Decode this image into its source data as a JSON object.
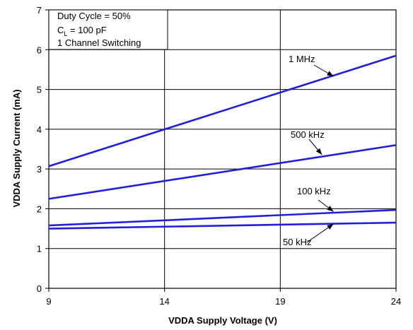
{
  "chart_data": {
    "type": "line",
    "xlabel": "VDDA Supply Voltage (V)",
    "ylabel": "VDDA Supply Current (mA)",
    "xlim": [
      9,
      24
    ],
    "ylim": [
      0,
      7
    ],
    "x_ticks": [
      9,
      14,
      19,
      24
    ],
    "y_ticks": [
      0,
      1,
      2,
      3,
      4,
      5,
      6,
      7
    ],
    "grid": true,
    "series": [
      {
        "name": "1 MHz",
        "x": [
          9,
          24
        ],
        "values": [
          3.07,
          5.85
        ]
      },
      {
        "name": "500 kHz",
        "x": [
          9,
          24
        ],
        "values": [
          2.25,
          3.6
        ]
      },
      {
        "name": "100 kHz",
        "x": [
          9,
          24
        ],
        "values": [
          1.58,
          1.97
        ]
      },
      {
        "name": "50 kHz",
        "x": [
          9,
          24
        ],
        "values": [
          1.5,
          1.65
        ]
      }
    ],
    "conditions": {
      "line1": "Duty Cycle = 50%",
      "line2_main": "C",
      "line2_sub": "L",
      "line2_rest": " = 100 pF",
      "line3": "1 Channel Switching"
    },
    "line_color": "#1f1fdc"
  }
}
